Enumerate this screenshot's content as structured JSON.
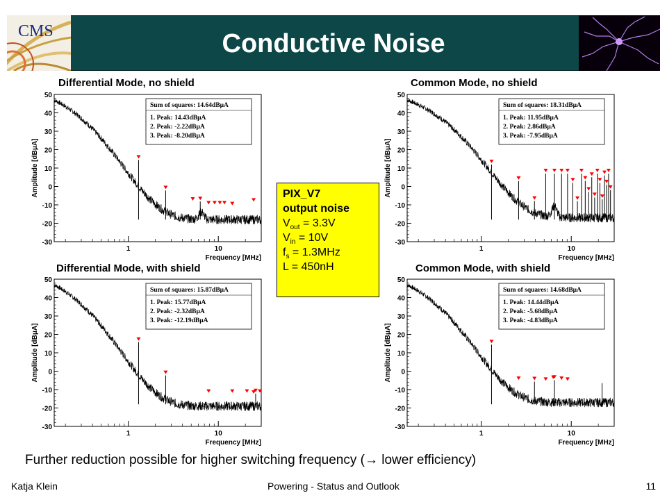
{
  "slide": {
    "title": "Conductive Noise",
    "logo_text": "CMS",
    "page_number": "11",
    "footer_left": "Katja Klein",
    "footer_center": "Powering - Status and Outlook",
    "bottom_note": "Further reduction possible for higher switching frequency (→ lower efficiency)",
    "colors": {
      "banner": "#0e4747",
      "info_box": "#ffff00",
      "markers": "#ff0000"
    }
  },
  "info_box": {
    "line1": "PIX_V7",
    "line2": "output noise",
    "vout_main": "V",
    "vout_sub": "out",
    "vout_value": " = 3.3V",
    "vin_main": "V",
    "vin_sub": "in",
    "vin_value": " = 10V",
    "fs_main": "f",
    "fs_sub": "s",
    "fs_value": " = 1.3MHz",
    "inductance": "L = 450nH"
  },
  "chart_data": [
    {
      "type": "line",
      "title": "Differential Mode, no shield",
      "xlabel": "Frequency [MHz]",
      "ylabel": "Amplitude [dBμA]",
      "x_scale": "log",
      "xlim": [
        0.15,
        30
      ],
      "x_ticks": [
        {
          "v": 1,
          "label": "1"
        },
        {
          "v": 10,
          "label": "10"
        }
      ],
      "ylim": [
        -30,
        50
      ],
      "y_ticks": [
        -30,
        -20,
        -10,
        0,
        10,
        20,
        30,
        40,
        50
      ],
      "legend_lines": [
        "Sum of squares: 14.64dBμA",
        "1. Peak: 14.43dBμA",
        "2. Peak: -2.22dBμA",
        "3. Peak: -8.20dBμA"
      ],
      "curve": {
        "start": 47,
        "floor": -18,
        "tau": 0.9,
        "bump_x": 6.5,
        "bump_h": 4
      },
      "spikes": [
        {
          "x": 1.3,
          "y": 14.4
        },
        {
          "x": 2.6,
          "y": -2.2
        },
        {
          "x": 6.3,
          "y": -8.2
        }
      ],
      "markers": [
        {
          "x": 1.3,
          "y": 14.4
        },
        {
          "x": 2.6,
          "y": -2.2
        },
        {
          "x": 5.2,
          "y": -8.5
        },
        {
          "x": 6.3,
          "y": -8.2
        },
        {
          "x": 7.8,
          "y": -10.5
        },
        {
          "x": 9.1,
          "y": -10.5
        },
        {
          "x": 10.4,
          "y": -10.5
        },
        {
          "x": 11.7,
          "y": -10.5
        },
        {
          "x": 14.3,
          "y": -11
        },
        {
          "x": 24.7,
          "y": -9
        }
      ]
    },
    {
      "type": "line",
      "title": "Common Mode, no shield",
      "xlabel": "Frequency [MHz]",
      "ylabel": "Amplitude [dBμA]",
      "x_scale": "log",
      "xlim": [
        0.15,
        30
      ],
      "x_ticks": [
        {
          "v": 1,
          "label": "1"
        },
        {
          "v": 10,
          "label": "10"
        }
      ],
      "ylim": [
        -30,
        50
      ],
      "y_ticks": [
        -30,
        -20,
        -10,
        0,
        10,
        20,
        30,
        40,
        50
      ],
      "legend_lines": [
        "Sum of squares: 18.31dBμA",
        "1. Peak: 11.95dBμA",
        "2. Peak: 2.86dBμA",
        "3. Peak: -7.95dBμA"
      ],
      "curve": {
        "start": 47,
        "floor": -17,
        "tau": 1.2,
        "bump_x": 6.5,
        "bump_h": 6
      },
      "spikes": [
        {
          "x": 1.3,
          "y": 11.95
        },
        {
          "x": 2.6,
          "y": 2.86
        },
        {
          "x": 3.9,
          "y": -7.95
        },
        {
          "x": 5.2,
          "y": 7
        },
        {
          "x": 6.5,
          "y": 7
        },
        {
          "x": 7.8,
          "y": 7
        },
        {
          "x": 9.1,
          "y": 7
        },
        {
          "x": 10.4,
          "y": 2
        },
        {
          "x": 11.7,
          "y": -8
        },
        {
          "x": 13,
          "y": 7
        },
        {
          "x": 14.3,
          "y": 3
        },
        {
          "x": 15.6,
          "y": -3
        },
        {
          "x": 16.9,
          "y": 5
        },
        {
          "x": 18.2,
          "y": -6
        },
        {
          "x": 19.5,
          "y": 7
        },
        {
          "x": 20.8,
          "y": 2
        },
        {
          "x": 22.1,
          "y": -7
        },
        {
          "x": 23.4,
          "y": 6
        },
        {
          "x": 24.7,
          "y": 1
        },
        {
          "x": 26,
          "y": 7
        },
        {
          "x": 27.3,
          "y": -2
        }
      ],
      "markers": [
        {
          "x": 1.3,
          "y": 11.95
        },
        {
          "x": 2.6,
          "y": 2.86
        },
        {
          "x": 3.9,
          "y": -7.95
        },
        {
          "x": 5.2,
          "y": 7
        },
        {
          "x": 6.5,
          "y": 7
        },
        {
          "x": 7.8,
          "y": 7
        },
        {
          "x": 9.1,
          "y": 7
        },
        {
          "x": 10.4,
          "y": 2
        },
        {
          "x": 11.7,
          "y": -8
        },
        {
          "x": 13,
          "y": 7
        },
        {
          "x": 14.3,
          "y": 3
        },
        {
          "x": 15.6,
          "y": -3
        },
        {
          "x": 16.9,
          "y": 5
        },
        {
          "x": 18.2,
          "y": -6
        },
        {
          "x": 19.5,
          "y": 7
        },
        {
          "x": 20.8,
          "y": 2
        },
        {
          "x": 22.1,
          "y": -7
        },
        {
          "x": 23.4,
          "y": 6
        },
        {
          "x": 24.7,
          "y": 1
        },
        {
          "x": 26,
          "y": 7
        },
        {
          "x": 27.3,
          "y": -2
        }
      ]
    },
    {
      "type": "line",
      "title": "Differential Mode, with shield",
      "xlabel": "Frequency [MHz]",
      "ylabel": "Amplitude [dBμA]",
      "x_scale": "log",
      "xlim": [
        0.15,
        30
      ],
      "x_ticks": [
        {
          "v": 1,
          "label": "1"
        },
        {
          "v": 10,
          "label": "10"
        }
      ],
      "ylim": [
        -30,
        50
      ],
      "y_ticks": [
        -30,
        -20,
        -10,
        0,
        10,
        20,
        30,
        40,
        50
      ],
      "legend_lines": [
        "Sum of squares: 15.87dBμA",
        "1. Peak: 15.77dBμA",
        "2. Peak: -2.32dBμA",
        "3. Peak: -12.19dBμA"
      ],
      "curve": {
        "start": 47,
        "floor": -19,
        "tau": 0.85,
        "bump_x": 0,
        "bump_h": 0
      },
      "spikes": [
        {
          "x": 1.3,
          "y": 15.77
        },
        {
          "x": 2.6,
          "y": -2.32
        },
        {
          "x": 26,
          "y": -12.19
        }
      ],
      "markers": [
        {
          "x": 1.3,
          "y": 15.77
        },
        {
          "x": 2.6,
          "y": -2.32
        },
        {
          "x": 7.8,
          "y": -12.5
        },
        {
          "x": 14.3,
          "y": -12.5
        },
        {
          "x": 20.8,
          "y": -12.5
        },
        {
          "x": 24.7,
          "y": -13
        },
        {
          "x": 26,
          "y": -12.19
        },
        {
          "x": 29,
          "y": -12.5
        }
      ]
    },
    {
      "type": "line",
      "title": "Common Mode, with shield",
      "xlabel": "Frequency [MHz]",
      "ylabel": "Amplitude [dBμA]",
      "x_scale": "log",
      "xlim": [
        0.15,
        30
      ],
      "x_ticks": [
        {
          "v": 1,
          "label": "1"
        },
        {
          "v": 10,
          "label": "10"
        }
      ],
      "ylim": [
        -30,
        50
      ],
      "y_ticks": [
        -30,
        -20,
        -10,
        0,
        10,
        20,
        30,
        40,
        50
      ],
      "legend_lines": [
        "Sum of squares: 14.68dBμA",
        "1. Peak: 14.44dBμA",
        "2. Peak: -5.68dBμA",
        "3. Peak: -4.83dBμA"
      ],
      "curve": {
        "start": 47,
        "floor": -17,
        "tau": 0.9,
        "bump_x": 0,
        "bump_h": 0
      },
      "spikes": [
        {
          "x": 1.3,
          "y": 14.44
        },
        {
          "x": 3.9,
          "y": -5.68
        },
        {
          "x": 6.5,
          "y": -4.83
        },
        {
          "x": 22,
          "y": -6.5
        }
      ],
      "markers": [
        {
          "x": 1.3,
          "y": 14.44
        },
        {
          "x": 2.6,
          "y": -5.5
        },
        {
          "x": 3.9,
          "y": -5.68
        },
        {
          "x": 5.2,
          "y": -6
        },
        {
          "x": 6.3,
          "y": -5
        },
        {
          "x": 6.5,
          "y": -4.83
        },
        {
          "x": 7.8,
          "y": -5.5
        },
        {
          "x": 9.1,
          "y": -6
        }
      ]
    }
  ]
}
